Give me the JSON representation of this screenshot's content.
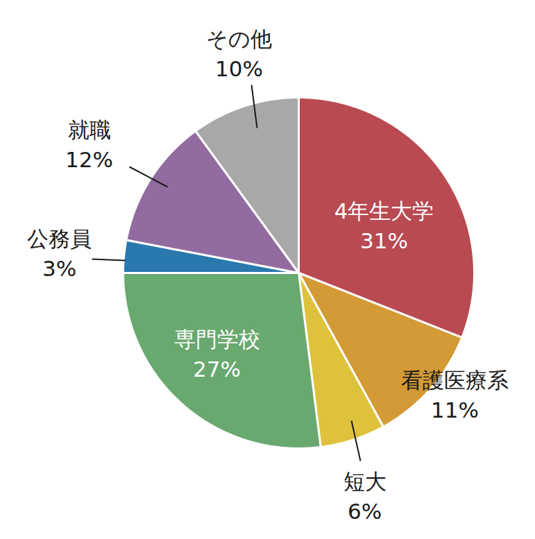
{
  "chart_data": {
    "type": "pie",
    "categories": [
      "4年生大学",
      "看護医療系",
      "短大",
      "専門学校",
      "公務員",
      "就職",
      "その他"
    ],
    "values": [
      31,
      11,
      6,
      27,
      3,
      12,
      10
    ],
    "value_labels": [
      "31%",
      "11%",
      "6%",
      "27%",
      "3%",
      "12%",
      "10%"
    ],
    "colors": [
      "#b94a52",
      "#d49a35",
      "#dfc23c",
      "#69a96f",
      "#2a79ae",
      "#926ca0",
      "#a8a8a8"
    ],
    "data_labels": true
  }
}
